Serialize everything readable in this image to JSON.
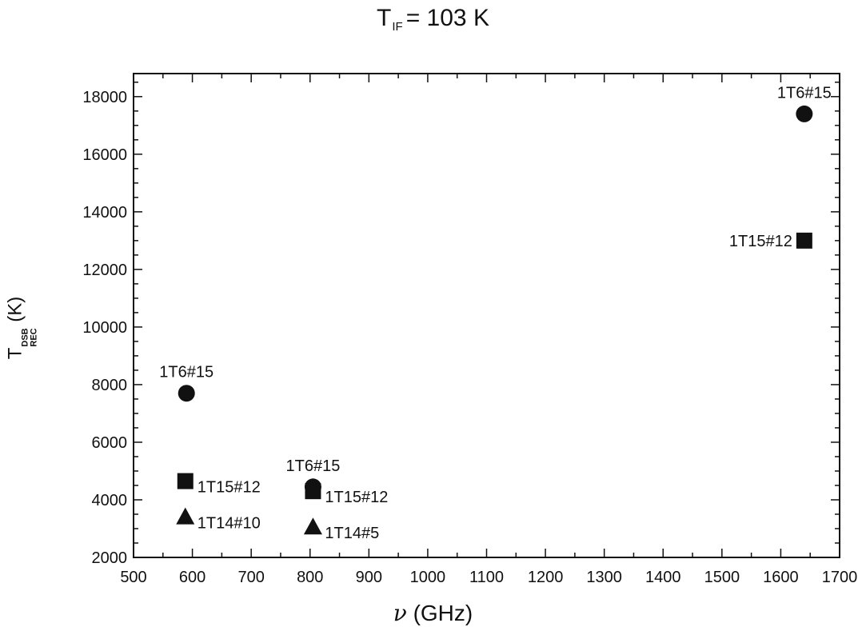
{
  "title": {
    "symbol": "T",
    "subscript": "IF",
    "rest": "= 103 K"
  },
  "axes": {
    "xlabel_symbol": "ν",
    "xlabel_unit": "(GHz)",
    "ylabel_symbol": "T",
    "ylabel_sup": "DSB",
    "ylabel_sub": "REC",
    "ylabel_unit": "(K)"
  },
  "chart_data": {
    "type": "scatter",
    "title": "T_IF = 103 K",
    "xlabel": "ν (GHz)",
    "ylabel": "T_REC^DSB (K)",
    "xlim": [
      500,
      1700
    ],
    "ylim": [
      2000,
      18800
    ],
    "xticks": [
      500,
      600,
      700,
      800,
      900,
      1000,
      1100,
      1200,
      1300,
      1400,
      1500,
      1600,
      1700
    ],
    "yticks": [
      2000,
      4000,
      6000,
      8000,
      10000,
      12000,
      14000,
      16000,
      18000
    ],
    "grid": false,
    "points": [
      {
        "x": 590,
        "y": 7700,
        "marker": "circle",
        "label": "1T6#15",
        "label_pos": "above"
      },
      {
        "x": 588,
        "y": 4650,
        "marker": "square",
        "label": "1T15#12",
        "label_pos": "right"
      },
      {
        "x": 588,
        "y": 3400,
        "marker": "triangle",
        "label": "1T14#10",
        "label_pos": "right"
      },
      {
        "x": 805,
        "y": 4450,
        "marker": "circle",
        "label": "1T6#15",
        "label_pos": "above"
      },
      {
        "x": 805,
        "y": 4300,
        "marker": "square",
        "label": "1T15#12",
        "label_pos": "right"
      },
      {
        "x": 805,
        "y": 3050,
        "marker": "triangle",
        "label": "1T14#5",
        "label_pos": "right"
      },
      {
        "x": 1640,
        "y": 17400,
        "marker": "circle",
        "label": "1T6#15",
        "label_pos": "above"
      },
      {
        "x": 1640,
        "y": 13000,
        "marker": "square",
        "label": "1T15#12",
        "label_pos": "left"
      }
    ]
  }
}
